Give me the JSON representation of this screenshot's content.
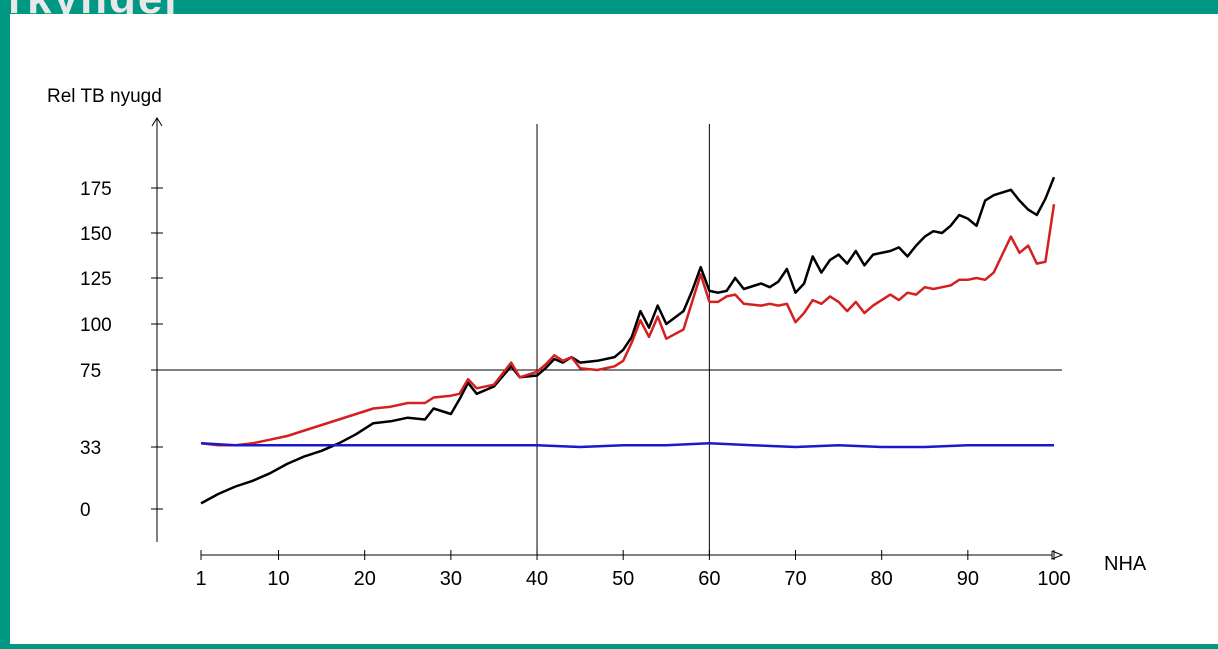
{
  "slide": {
    "accent": "#009882",
    "panel_bg": "#ffffff",
    "title_fragment": "rkyngej"
  },
  "chart_data": {
    "type": "line",
    "title": "",
    "xlabel": "NHA",
    "ylabel": "Rel TB nyugd",
    "x_ticks": [
      "1",
      "10",
      "20",
      "30",
      "40",
      "50",
      "60",
      "70",
      "80",
      "90",
      "100"
    ],
    "y_ticks": [
      "0",
      "33",
      "75",
      "100",
      "125",
      "150",
      "175"
    ],
    "xlim": [
      1,
      100
    ],
    "ylim": [
      0,
      175
    ],
    "reference_lines": {
      "vertical_x": [
        40,
        60
      ],
      "horizontal_y": [
        75
      ]
    },
    "grid": false,
    "legend": "none",
    "series": [
      {
        "color": "#000000",
        "points": [
          [
            1,
            3
          ],
          [
            3,
            8
          ],
          [
            5,
            12
          ],
          [
            7,
            15
          ],
          [
            9,
            19
          ],
          [
            11,
            24
          ],
          [
            13,
            28
          ],
          [
            15,
            31
          ],
          [
            17,
            35
          ],
          [
            19,
            40
          ],
          [
            21,
            46
          ],
          [
            23,
            47
          ],
          [
            25,
            49
          ],
          [
            27,
            48
          ],
          [
            28,
            54
          ],
          [
            30,
            51
          ],
          [
            31,
            59
          ],
          [
            32,
            68
          ],
          [
            33,
            62
          ],
          [
            35,
            66
          ],
          [
            37,
            77
          ],
          [
            38,
            71
          ],
          [
            40,
            72
          ],
          [
            41,
            76
          ],
          [
            42,
            81
          ],
          [
            43,
            79
          ],
          [
            44,
            82
          ],
          [
            45,
            79
          ],
          [
            47,
            80
          ],
          [
            49,
            82
          ],
          [
            50,
            86
          ],
          [
            51,
            93
          ],
          [
            52,
            107
          ],
          [
            53,
            98
          ],
          [
            54,
            110
          ],
          [
            55,
            100
          ],
          [
            57,
            107
          ],
          [
            58,
            118
          ],
          [
            59,
            131
          ],
          [
            60,
            118
          ],
          [
            61,
            117
          ],
          [
            62,
            118
          ],
          [
            63,
            125
          ],
          [
            64,
            119
          ],
          [
            66,
            122
          ],
          [
            67,
            120
          ],
          [
            68,
            123
          ],
          [
            69,
            130
          ],
          [
            70,
            117
          ],
          [
            71,
            122
          ],
          [
            72,
            137
          ],
          [
            73,
            128
          ],
          [
            74,
            135
          ],
          [
            75,
            138
          ],
          [
            76,
            133
          ],
          [
            77,
            140
          ],
          [
            78,
            132
          ],
          [
            79,
            138
          ],
          [
            81,
            140
          ],
          [
            82,
            142
          ],
          [
            83,
            137
          ],
          [
            84,
            143
          ],
          [
            85,
            148
          ],
          [
            86,
            151
          ],
          [
            87,
            150
          ],
          [
            88,
            154
          ],
          [
            89,
            160
          ],
          [
            90,
            158
          ],
          [
            91,
            154
          ],
          [
            92,
            168
          ],
          [
            93,
            171
          ],
          [
            95,
            174
          ],
          [
            96,
            168
          ],
          [
            97,
            163
          ],
          [
            98,
            160
          ],
          [
            99,
            169
          ],
          [
            100,
            181
          ]
        ]
      },
      {
        "color": "#d42020",
        "points": [
          [
            1,
            35
          ],
          [
            3,
            34
          ],
          [
            5,
            34
          ],
          [
            7,
            35
          ],
          [
            9,
            37
          ],
          [
            11,
            39
          ],
          [
            13,
            42
          ],
          [
            15,
            45
          ],
          [
            17,
            48
          ],
          [
            19,
            51
          ],
          [
            21,
            54
          ],
          [
            23,
            55
          ],
          [
            25,
            57
          ],
          [
            27,
            57
          ],
          [
            28,
            60
          ],
          [
            30,
            61
          ],
          [
            31,
            62
          ],
          [
            32,
            70
          ],
          [
            33,
            65
          ],
          [
            35,
            67
          ],
          [
            37,
            79
          ],
          [
            38,
            71
          ],
          [
            40,
            74
          ],
          [
            41,
            78
          ],
          [
            42,
            83
          ],
          [
            43,
            80
          ],
          [
            44,
            82
          ],
          [
            45,
            76
          ],
          [
            47,
            75
          ],
          [
            49,
            77
          ],
          [
            50,
            80
          ],
          [
            51,
            90
          ],
          [
            52,
            102
          ],
          [
            53,
            93
          ],
          [
            54,
            104
          ],
          [
            55,
            92
          ],
          [
            57,
            97
          ],
          [
            58,
            112
          ],
          [
            59,
            127
          ],
          [
            60,
            112
          ],
          [
            61,
            112
          ],
          [
            62,
            115
          ],
          [
            63,
            116
          ],
          [
            64,
            111
          ],
          [
            66,
            110
          ],
          [
            67,
            111
          ],
          [
            68,
            110
          ],
          [
            69,
            111
          ],
          [
            70,
            101
          ],
          [
            71,
            106
          ],
          [
            72,
            113
          ],
          [
            73,
            111
          ],
          [
            74,
            115
          ],
          [
            75,
            112
          ],
          [
            76,
            107
          ],
          [
            77,
            112
          ],
          [
            78,
            106
          ],
          [
            79,
            110
          ],
          [
            81,
            116
          ],
          [
            82,
            113
          ],
          [
            83,
            117
          ],
          [
            84,
            116
          ],
          [
            85,
            120
          ],
          [
            86,
            119
          ],
          [
            87,
            120
          ],
          [
            88,
            121
          ],
          [
            89,
            124
          ],
          [
            90,
            124
          ],
          [
            91,
            125
          ],
          [
            92,
            124
          ],
          [
            93,
            128
          ],
          [
            95,
            148
          ],
          [
            96,
            139
          ],
          [
            97,
            143
          ],
          [
            98,
            133
          ],
          [
            99,
            134
          ],
          [
            100,
            166
          ]
        ]
      },
      {
        "color": "#1a1acc",
        "points": [
          [
            1,
            35
          ],
          [
            5,
            34
          ],
          [
            10,
            34
          ],
          [
            20,
            34
          ],
          [
            30,
            34
          ],
          [
            40,
            34
          ],
          [
            45,
            33
          ],
          [
            50,
            34
          ],
          [
            55,
            34
          ],
          [
            60,
            35
          ],
          [
            65,
            34
          ],
          [
            70,
            33
          ],
          [
            75,
            34
          ],
          [
            80,
            33
          ],
          [
            85,
            33
          ],
          [
            90,
            34
          ],
          [
            95,
            34
          ],
          [
            100,
            34
          ]
        ]
      }
    ]
  }
}
